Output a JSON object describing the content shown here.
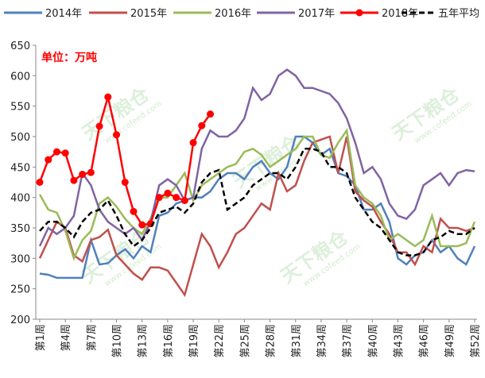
{
  "chart_data": {
    "type": "line",
    "unit_note": "单位：万吨",
    "watermark": "天下粮仓",
    "watermark_url": "www.cofeed.com",
    "categories": [
      "第1周",
      null,
      null,
      "第4周",
      null,
      null,
      "第7周",
      null,
      null,
      "第10周",
      null,
      null,
      "第13周",
      null,
      null,
      "第16周",
      null,
      null,
      "第19周",
      null,
      null,
      "第22周",
      null,
      null,
      "第25周",
      null,
      null,
      "第28周",
      null,
      null,
      "第31周",
      null,
      null,
      "第34周",
      null,
      null,
      "第37周",
      null,
      null,
      "第40周",
      null,
      null,
      "第43周",
      null,
      null,
      "第46周",
      null,
      null,
      "第49周",
      null,
      null,
      "第52周"
    ],
    "series": [
      {
        "name": "2014年",
        "color": "#4f81bd",
        "values": [
          275,
          273,
          268,
          268,
          268,
          268,
          330,
          290,
          292,
          305,
          315,
          300,
          320,
          310,
          370,
          375,
          390,
          395,
          400,
          400,
          410,
          430,
          440,
          440,
          430,
          450,
          460,
          440,
          430,
          450,
          500,
          500,
          490,
          470,
          480,
          440,
          435,
          420,
          380,
          380,
          390,
          360,
          300,
          290,
          305,
          310,
          330,
          310,
          320,
          300,
          290,
          320
        ]
      },
      {
        "name": "2015年",
        "color": "#c0504d",
        "values": [
          300,
          330,
          360,
          350,
          305,
          295,
          330,
          335,
          347,
          305,
          290,
          275,
          265,
          285,
          285,
          280,
          260,
          240,
          290,
          340,
          320,
          285,
          310,
          340,
          350,
          370,
          390,
          380,
          440,
          410,
          420,
          460,
          490,
          495,
          500,
          440,
          500,
          410,
          395,
          385,
          360,
          340,
          310,
          310,
          290,
          320,
          310,
          365,
          350,
          350,
          345,
          350
        ]
      },
      {
        "name": "2016年",
        "color": "#9bbb59",
        "values": [
          405,
          380,
          375,
          345,
          300,
          330,
          345,
          390,
          400,
          385,
          365,
          350,
          340,
          365,
          400,
          400,
          420,
          440,
          395,
          420,
          430,
          440,
          450,
          455,
          475,
          480,
          470,
          450,
          460,
          470,
          480,
          500,
          500,
          470,
          465,
          490,
          510,
          420,
          400,
          390,
          370,
          330,
          340,
          330,
          320,
          330,
          370,
          320,
          320,
          320,
          325,
          360
        ]
      },
      {
        "name": "2017年",
        "color": "#8064a2",
        "values": [
          320,
          350,
          340,
          350,
          370,
          440,
          420,
          380,
          360,
          350,
          340,
          350,
          330,
          360,
          420,
          430,
          420,
          395,
          400,
          480,
          510,
          500,
          500,
          510,
          530,
          580,
          560,
          570,
          600,
          610,
          600,
          580,
          580,
          575,
          570,
          555,
          530,
          490,
          440,
          450,
          430,
          390,
          370,
          365,
          380,
          420,
          430,
          440,
          420,
          440,
          445,
          443
        ]
      },
      {
        "name": "2018年",
        "color": "#ff0000",
        "marker": true,
        "values": [
          425,
          462,
          475,
          473,
          428,
          438,
          441,
          517,
          565,
          503,
          425,
          377,
          355,
          357,
          400,
          407,
          400,
          395,
          490,
          518,
          537,
          null,
          null,
          null,
          null,
          null,
          null,
          null,
          null,
          null,
          null,
          null,
          null,
          null,
          null,
          null,
          null,
          null,
          null,
          null,
          null,
          null,
          null,
          null,
          null,
          null,
          null,
          null,
          null,
          null,
          null,
          null
        ]
      },
      {
        "name": "五年平均",
        "color": "#000000",
        "dashed": true,
        "values": [
          345,
          360,
          360,
          350,
          335,
          360,
          375,
          380,
          395,
          370,
          340,
          320,
          330,
          350,
          375,
          380,
          385,
          375,
          390,
          425,
          440,
          445,
          380,
          390,
          400,
          420,
          430,
          440,
          440,
          430,
          450,
          480,
          480,
          475,
          450,
          450,
          440,
          400,
          380,
          360,
          350,
          330,
          310,
          305,
          305,
          310,
          330,
          335,
          345,
          340,
          340,
          350
        ]
      }
    ],
    "ylim": [
      200,
      650
    ],
    "yticks": [
      200,
      250,
      300,
      350,
      400,
      450,
      500,
      550,
      600,
      650
    ],
    "grid": false
  }
}
